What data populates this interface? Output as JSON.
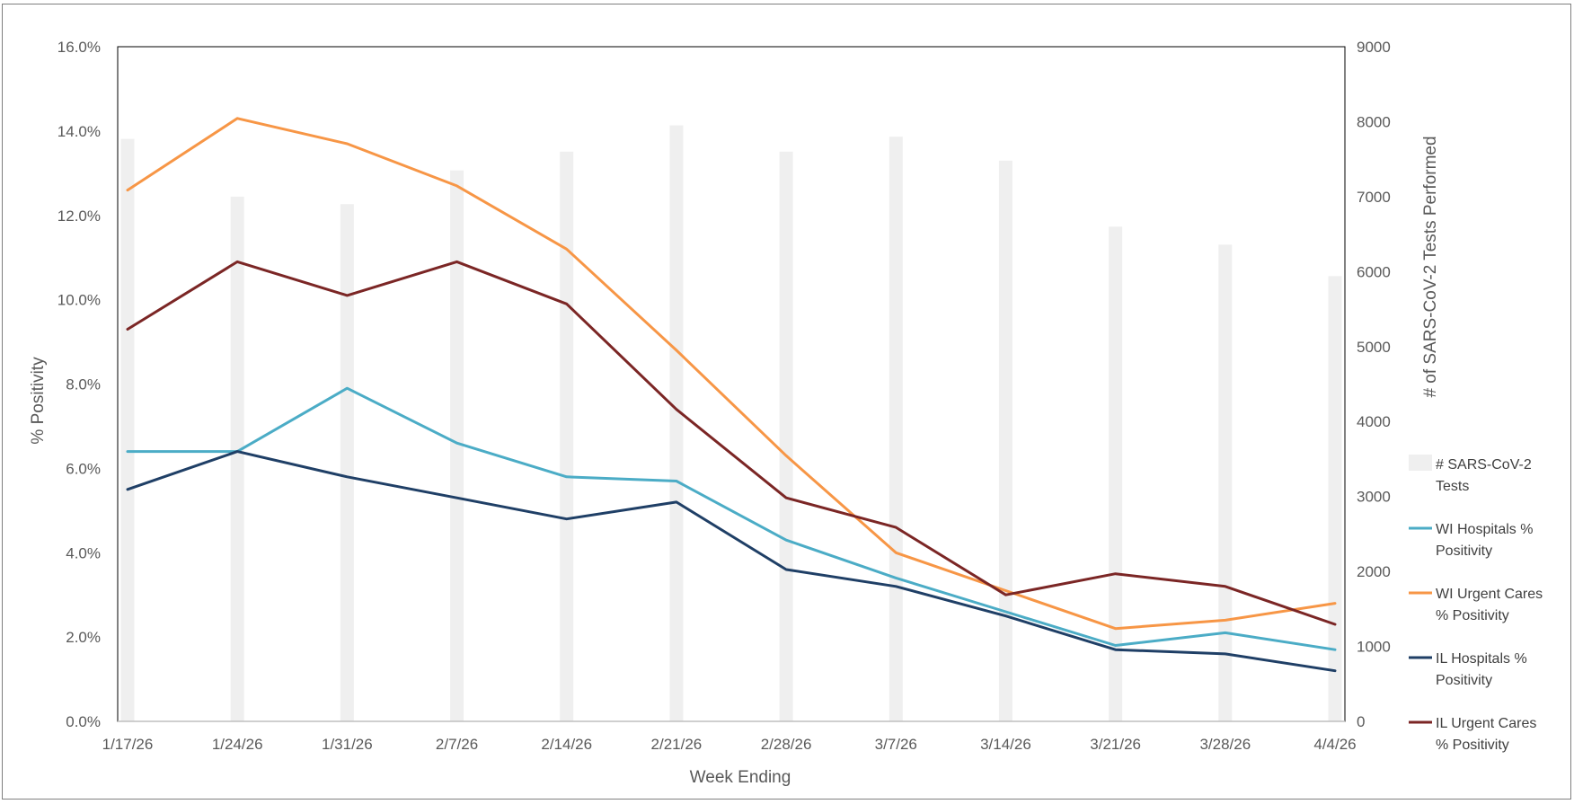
{
  "chart_data": {
    "type": "line",
    "title": "",
    "xlabel": "Week Ending",
    "ylabel": "% Positivity",
    "y2label": "# of SARS-CoV-2 Tests Performed",
    "categories": [
      "1/17/26",
      "1/24/26",
      "1/31/26",
      "2/7/26",
      "2/14/26",
      "2/21/26",
      "2/28/26",
      "3/7/26",
      "3/14/26",
      "3/21/26",
      "3/28/26",
      "4/4/26"
    ],
    "ylim": [
      0,
      16
    ],
    "y_ticks": [
      "0.0%",
      "2.0%",
      "4.0%",
      "6.0%",
      "8.0%",
      "10.0%",
      "12.0%",
      "14.0%",
      "16.0%"
    ],
    "y2lim": [
      0,
      9000
    ],
    "y2_ticks": [
      "0",
      "1000",
      "2000",
      "3000",
      "4000",
      "5000",
      "6000",
      "7000",
      "8000",
      "9000"
    ],
    "grid": false,
    "legend_position": "right",
    "bars": {
      "name": "# SARS-CoV-2 Tests",
      "color": "#efefef",
      "axis": "secondary",
      "values": [
        7770,
        7000,
        6900,
        7350,
        7600,
        7950,
        7600,
        7800,
        7480,
        6600,
        6360,
        5940
      ]
    },
    "series": [
      {
        "name": "WI Hospitals % Positivity",
        "color": "#4bacc6",
        "values": [
          6.4,
          6.4,
          7.9,
          6.6,
          5.8,
          5.7,
          4.3,
          3.4,
          2.6,
          1.8,
          2.1,
          1.7
        ]
      },
      {
        "name": "WI Urgent Cares % Positivity",
        "color": "#f79646",
        "values": [
          12.6,
          14.3,
          13.7,
          12.7,
          11.2,
          8.8,
          6.3,
          4.0,
          3.1,
          2.2,
          2.4,
          2.8
        ]
      },
      {
        "name": "IL Hospitals % Positivity",
        "color": "#1f3f66",
        "values": [
          5.5,
          6.4,
          5.8,
          5.3,
          4.8,
          5.2,
          3.6,
          3.2,
          2.5,
          1.7,
          1.6,
          1.2
        ]
      },
      {
        "name": "IL Urgent Cares % Positivity",
        "color": "#7b2625",
        "values": [
          9.3,
          10.9,
          10.1,
          10.9,
          9.9,
          7.4,
          5.3,
          4.6,
          3.0,
          3.5,
          3.2,
          2.3
        ]
      }
    ],
    "legend": [
      {
        "label_lines": [
          "# SARS-CoV-2",
          "Tests"
        ],
        "kind": "bar",
        "color": "#efefef"
      },
      {
        "label_lines": [
          "WI Hospitals %",
          "Positivity"
        ],
        "kind": "line",
        "color": "#4bacc6"
      },
      {
        "label_lines": [
          "WI Urgent Cares",
          "% Positivity"
        ],
        "kind": "line",
        "color": "#f79646"
      },
      {
        "label_lines": [
          "IL Hospitals %",
          "Positivity"
        ],
        "kind": "line",
        "color": "#1f3f66"
      },
      {
        "label_lines": [
          "IL Urgent Cares",
          "% Positivity"
        ],
        "kind": "line",
        "color": "#7b2625"
      }
    ]
  }
}
